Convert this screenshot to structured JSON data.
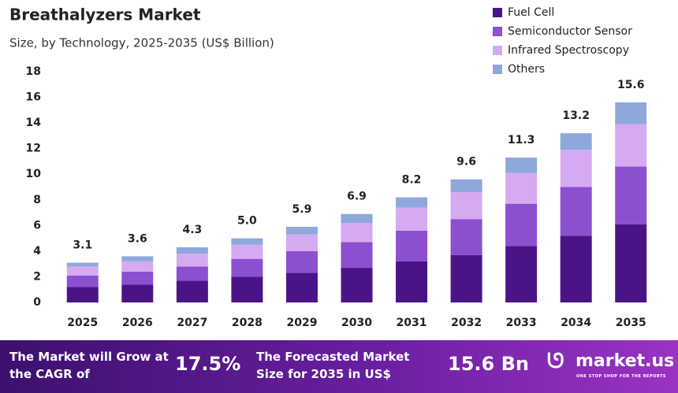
{
  "chart_data": {
    "type": "stacked_bar",
    "title": "Breathalyzers Market",
    "subtitle": "Size, by Technology, 2025-2035 (US$ Billion)",
    "categories": [
      "2025",
      "2026",
      "2027",
      "2028",
      "2029",
      "2030",
      "2031",
      "2032",
      "2033",
      "2034",
      "2035"
    ],
    "series": [
      {
        "name": "Fuel Cell",
        "color": "#4a1486",
        "values": [
          1.2,
          1.4,
          1.7,
          2.0,
          2.3,
          2.7,
          3.2,
          3.7,
          4.4,
          5.2,
          6.1
        ]
      },
      {
        "name": "Semiconductor Sensor",
        "color": "#8b4fd0",
        "values": [
          0.9,
          1.0,
          1.1,
          1.4,
          1.7,
          2.0,
          2.4,
          2.8,
          3.3,
          3.8,
          4.5
        ]
      },
      {
        "name": "Infrared Spectroscopy",
        "color": "#d6aaf0",
        "values": [
          0.7,
          0.8,
          1.0,
          1.1,
          1.3,
          1.5,
          1.8,
          2.1,
          2.4,
          2.9,
          3.3
        ]
      },
      {
        "name": "Others",
        "color": "#8fa8dc",
        "values": [
          0.3,
          0.4,
          0.5,
          0.5,
          0.6,
          0.7,
          0.8,
          1.0,
          1.2,
          1.3,
          1.7
        ]
      }
    ],
    "totals": [
      3.1,
      3.6,
      4.3,
      5.0,
      5.9,
      6.9,
      8.2,
      9.6,
      11.3,
      13.2,
      15.6
    ],
    "value_labels": [
      "3.1",
      "3.6",
      "4.3",
      "5.0",
      "5.9",
      "6.9",
      "8.2",
      "9.6",
      "11.3",
      "13.2",
      "15.6"
    ],
    "ylim": [
      0,
      18
    ],
    "yticks": [
      0,
      2,
      4,
      6,
      8,
      10,
      12,
      14,
      16,
      18
    ],
    "grid": false,
    "legend": "top-right"
  },
  "footer": {
    "cagr_text": "The Market will Grow at the CAGR of",
    "cagr_value": "17.5%",
    "forecast_text": "The Forecasted Market Size for 2035 in US$",
    "forecast_value": "15.6 Bn",
    "brand": "market.us",
    "tagline": "ONE STOP SHOP FOR THE REPORTS"
  }
}
